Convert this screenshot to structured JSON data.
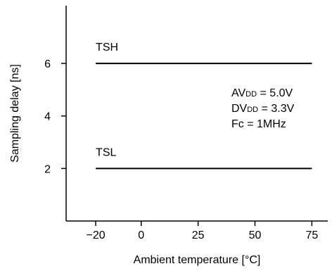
{
  "chart_data": {
    "type": "line",
    "xlabel": "Ambient temperature [°C]",
    "ylabel": "Sampling delay [ns]",
    "xlim": [
      -33,
      82
    ],
    "ylim": [
      0,
      8.2
    ],
    "x_ticks": [
      -20,
      0,
      25,
      50,
      75
    ],
    "x_tick_labels": [
      "−20",
      "0",
      "25",
      "50",
      "75"
    ],
    "y_ticks": [
      2,
      4,
      6
    ],
    "y_tick_labels": [
      "2",
      "4",
      "6"
    ],
    "grid": false,
    "series": [
      {
        "name": "TSH",
        "x": [
          -20,
          75
        ],
        "y": [
          6,
          6
        ]
      },
      {
        "name": "TSL",
        "x": [
          -20,
          75
        ],
        "y": [
          2,
          2
        ]
      }
    ],
    "conditions": [
      {
        "main": "AV",
        "sub": "DD",
        "rest": " = 5.0V"
      },
      {
        "main": "DV",
        "sub": "DD",
        "rest": " = 3.3V"
      },
      {
        "main": "Fc = 1MHz",
        "sub": "",
        "rest": ""
      }
    ]
  }
}
